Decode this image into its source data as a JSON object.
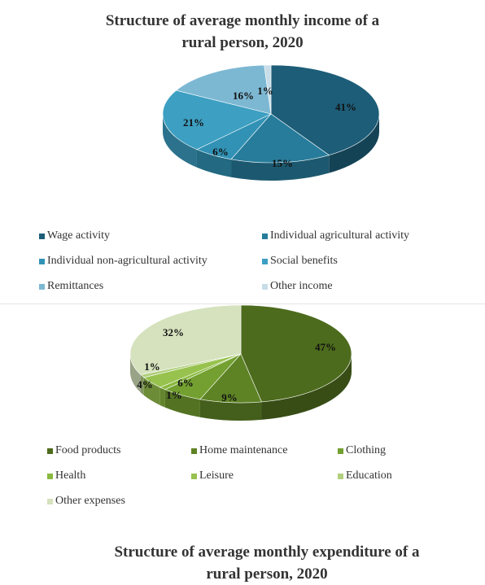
{
  "chart_data": [
    {
      "type": "pie",
      "title_lines": [
        "Structure of average monthly income of a",
        "rural person, 2020"
      ],
      "labels": [
        "Wage activity",
        "Individual agricultural activity",
        "Individual non-agricultural activity",
        "Social benefits",
        "Remittances",
        "Other income"
      ],
      "values": [
        41,
        15,
        6,
        21,
        16,
        1
      ],
      "data_labels": [
        "41%",
        "15%",
        "6%",
        "21%",
        "16%",
        "1%"
      ],
      "colors": [
        "#1d5d78",
        "#277c9b",
        "#3192b5",
        "#3d9fc2",
        "#7db8d3",
        "#c7dde8"
      ],
      "legend_position": "bottom"
    },
    {
      "type": "pie",
      "title_lines": [
        "Structure of average monthly expenditure of a",
        "rural person, 2020"
      ],
      "labels": [
        "Food products",
        "Home maintenance",
        "Clothing",
        "Health",
        "Leisure",
        "Education",
        "Other expenses"
      ],
      "values": [
        47,
        9,
        6,
        1,
        4,
        1,
        32
      ],
      "data_labels": [
        "47%",
        "9%",
        "6%",
        "1%",
        "4%",
        "1%",
        "32%"
      ],
      "colors": [
        "#4d6b1d",
        "#5e8325",
        "#73a030",
        "#89b93f",
        "#98c24e",
        "#b1cf7e",
        "#d5e2bd"
      ],
      "legend_position": "bottom"
    }
  ]
}
